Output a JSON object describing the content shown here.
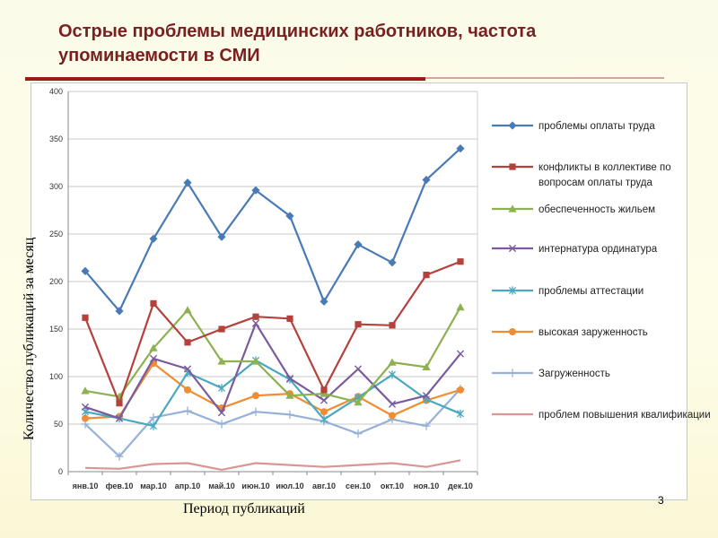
{
  "slide": {
    "title": "Острые проблемы медицинских работников, частота упоминаемости в СМИ",
    "page_number": "3"
  },
  "colors": {
    "title": "#7a1f1f",
    "rule": "#9b1b1b"
  },
  "chart_data": {
    "type": "line",
    "xlabel": "Период публикаций",
    "ylabel": "Количество публикаций за месяц",
    "ylim": [
      0,
      400
    ],
    "yticks": [
      0,
      50,
      100,
      150,
      200,
      250,
      300,
      350,
      400
    ],
    "grid": true,
    "legend_position": "right",
    "categories": [
      "янв.10",
      "фев.10",
      "мар.10",
      "апр.10",
      "май.10",
      "июн.10",
      "июл.10",
      "авг.10",
      "сен.10",
      "окт.10",
      "ноя.10",
      "дек.10"
    ],
    "series": [
      {
        "name": "проблемы оплаты труда",
        "color": "#4a7ab5",
        "marker": "diamond",
        "values": [
          211,
          169,
          245,
          304,
          247,
          296,
          269,
          179,
          239,
          220,
          307,
          340
        ]
      },
      {
        "name": "конфликты в коллективе по вопросам оплаты труда",
        "color": "#b5413c",
        "marker": "square",
        "values": [
          162,
          72,
          177,
          136,
          150,
          163,
          161,
          86,
          155,
          154,
          207,
          221
        ]
      },
      {
        "name": "обеспеченность жильем",
        "color": "#8db150",
        "marker": "triangle",
        "values": [
          85,
          79,
          130,
          170,
          116,
          116,
          80,
          82,
          73,
          115,
          110,
          173
        ]
      },
      {
        "name": "интернатура ординатура",
        "color": "#7b5a9e",
        "marker": "x",
        "values": [
          68,
          56,
          119,
          108,
          62,
          156,
          98,
          75,
          108,
          71,
          80,
          124
        ]
      },
      {
        "name": "проблемы аттестации",
        "color": "#4aa8c0",
        "marker": "asterisk",
        "values": [
          63,
          56,
          48,
          104,
          88,
          117,
          97,
          55,
          78,
          102,
          76,
          61
        ]
      },
      {
        "name": "высокая заруженность",
        "color": "#f08c32",
        "marker": "circle",
        "values": [
          56,
          58,
          114,
          86,
          67,
          80,
          82,
          63,
          79,
          59,
          75,
          86
        ]
      },
      {
        "name": "Загруженность",
        "color": "#95b1d8",
        "marker": "plus",
        "values": [
          50,
          16,
          57,
          64,
          50,
          63,
          60,
          53,
          40,
          55,
          48,
          87
        ]
      },
      {
        "name": "проблем повышения квалификации",
        "color": "#d99694",
        "marker": "none",
        "values": [
          4,
          3,
          8,
          9,
          2,
          9,
          7,
          5,
          7,
          9,
          5,
          12
        ]
      }
    ]
  }
}
